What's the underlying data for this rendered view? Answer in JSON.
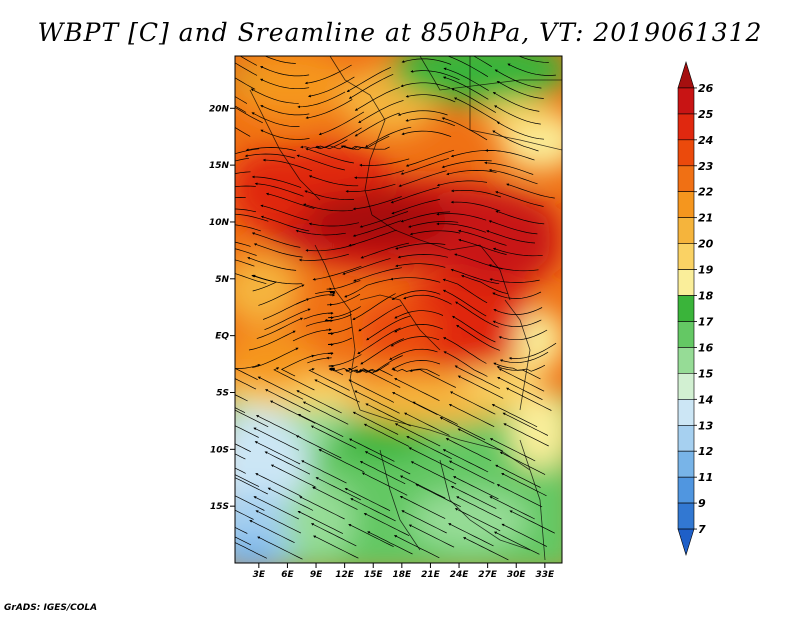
{
  "title": "WBPT [C] and Sreamline at 850hPa, VT: 2019061312",
  "credit": "GrADS: IGES/COLA",
  "map": {
    "variable": "Wet-bulb potential temperature",
    "units": "C",
    "level": "850hPa",
    "valid_time": "2019061312",
    "lat_labels": [
      "20N",
      "15N",
      "10N",
      "5N",
      "EQ",
      "5S",
      "10S",
      "15S"
    ],
    "lat_values": [
      20,
      15,
      10,
      5,
      0,
      -5,
      -10,
      -15
    ],
    "lon_labels": [
      "3E",
      "6E",
      "9E",
      "12E",
      "15E",
      "18E",
      "21E",
      "24E",
      "27E",
      "30E",
      "33E"
    ],
    "lon_values": [
      3,
      6,
      9,
      12,
      15,
      18,
      21,
      24,
      27,
      30,
      33
    ],
    "lon_range": [
      0.5,
      34.8
    ],
    "lat_range": [
      -20,
      24.6
    ]
  },
  "colorbar": {
    "labels": [
      "26",
      "25",
      "24",
      "23",
      "22",
      "21",
      "20",
      "19",
      "18",
      "17",
      "16",
      "15",
      "14",
      "13",
      "12",
      "11",
      "9",
      "7"
    ],
    "colors": [
      "#a50f0f",
      "#c81414",
      "#e0280f",
      "#eb4a0c",
      "#f07014",
      "#f5961e",
      "#f5b43c",
      "#fad264",
      "#faee9a",
      "#3ab43a",
      "#64c864",
      "#96dc96",
      "#d2f0d2",
      "#cce6f5",
      "#a6d0f0",
      "#78b4e8",
      "#5096e0",
      "#3278d2",
      "#1e5fc8"
    ]
  }
}
